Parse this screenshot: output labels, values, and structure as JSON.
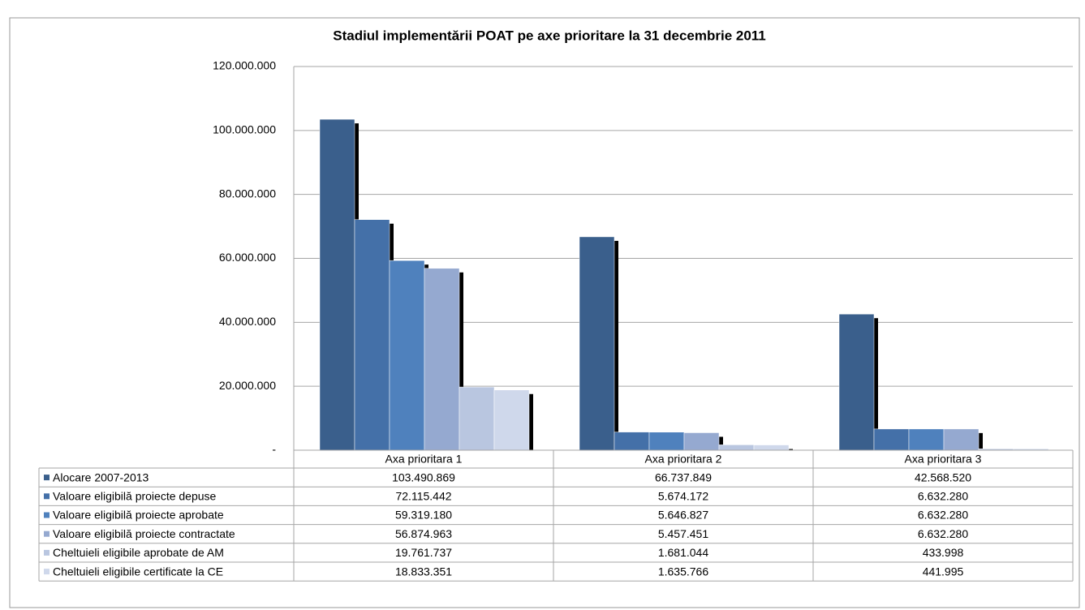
{
  "chart_data": {
    "type": "bar",
    "title": "Stadiul implementării POAT pe axe prioritare la 31 decembrie 2011",
    "categories": [
      "Axa prioritara 1",
      "Axa prioritara 2",
      "Axa prioritara 3"
    ],
    "series": [
      {
        "name": "Alocare 2007-2013",
        "color": "#3a5f8c",
        "values": [
          103490869,
          66737849,
          42568520
        ],
        "value_labels": [
          "103.490.869",
          "66.737.849",
          "42.568.520"
        ]
      },
      {
        "name": "Valoare eligibilă proiecte depuse",
        "color": "#4470a8",
        "values": [
          72115442,
          5674172,
          6632280
        ],
        "value_labels": [
          "72.115.442",
          "5.674.172",
          "6.632.280"
        ]
      },
      {
        "name": "Valoare eligibilă proiecte aprobate",
        "color": "#4f81bd",
        "values": [
          59319180,
          5646827,
          6632280
        ],
        "value_labels": [
          "59.319.180",
          "5.646.827",
          "6.632.280"
        ]
      },
      {
        "name": "Valoare eligibilă proiecte contractate",
        "color": "#95a9d0",
        "values": [
          56874963,
          5457451,
          6632280
        ],
        "value_labels": [
          "56.874.963",
          "5.457.451",
          "6.632.280"
        ]
      },
      {
        "name": "Cheltuieli eligibile aprobate de AM",
        "color": "#b9c6e0",
        "values": [
          19761737,
          1681044,
          433998
        ],
        "value_labels": [
          "19.761.737",
          "1.681.044",
          "433.998"
        ]
      },
      {
        "name": "Cheltuieli eligibile certificate la CE",
        "color": "#cfd8eb",
        "values": [
          18833351,
          1635766,
          441995
        ],
        "value_labels": [
          "18.833.351",
          "1.635.766",
          "441.995"
        ]
      }
    ],
    "ylim": [
      0,
      120000000
    ],
    "yticks": [
      {
        "value": 0,
        "label": "-"
      },
      {
        "value": 20000000,
        "label": "20.000.000"
      },
      {
        "value": 40000000,
        "label": "40.000.000"
      },
      {
        "value": 60000000,
        "label": "60.000.000"
      },
      {
        "value": 80000000,
        "label": "80.000.000"
      },
      {
        "value": 100000000,
        "label": "100.000.000"
      },
      {
        "value": 120000000,
        "label": "120.000.000"
      }
    ],
    "grid": true
  }
}
